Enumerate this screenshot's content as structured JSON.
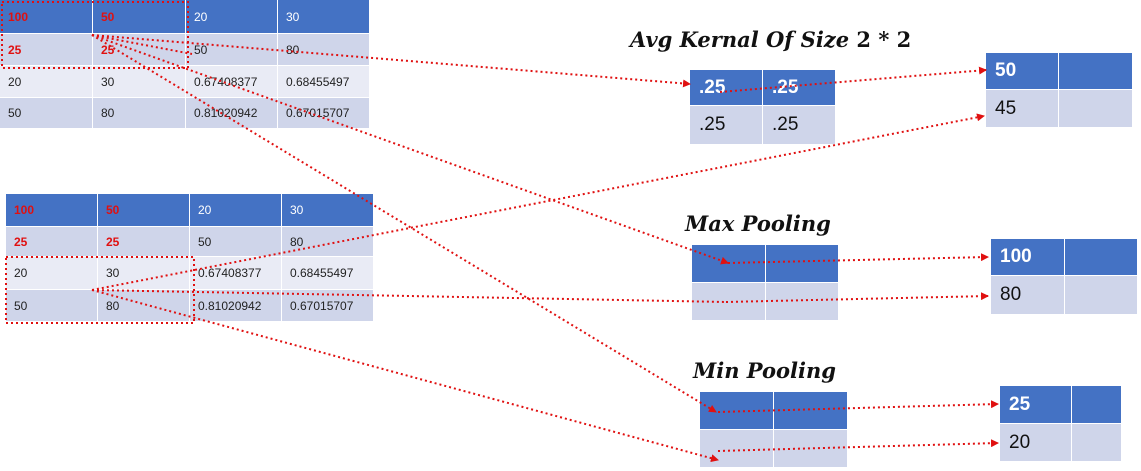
{
  "input_tables": [
    {
      "rows": [
        [
          "100",
          "50",
          "20",
          "30"
        ],
        [
          "25",
          "25",
          "50",
          "80"
        ],
        [
          "20",
          "30",
          "0.67408377",
          "0.68455497"
        ],
        [
          "50",
          "80",
          "0.81020942",
          "0.67015707"
        ]
      ]
    },
    {
      "rows": [
        [
          "100",
          "50",
          "20",
          "30"
        ],
        [
          "25",
          "25",
          "50",
          "80"
        ],
        [
          "20",
          "30",
          "0.67408377",
          "0.68455497"
        ],
        [
          "50",
          "80",
          "0.81020942",
          "0.67015707"
        ]
      ]
    }
  ],
  "sections": {
    "avg": {
      "title": "Avg Kernal Of Size",
      "title_suffix": "2 * 2",
      "kernel": [
        [
          ".25",
          ".25"
        ],
        [
          ".25",
          ".25"
        ]
      ],
      "result": [
        "50",
        "45"
      ]
    },
    "max": {
      "title": "Max Pooling",
      "result": [
        "100",
        "80"
      ]
    },
    "min": {
      "title": "Min Pooling",
      "result": [
        "25",
        "20"
      ]
    }
  },
  "colors": {
    "header_blue": "#4472c4",
    "row_light": "#cfd5ea",
    "row_lighter": "#e9ebf5",
    "highlight_red": "#e01010",
    "arrow_red": "#e01010"
  }
}
